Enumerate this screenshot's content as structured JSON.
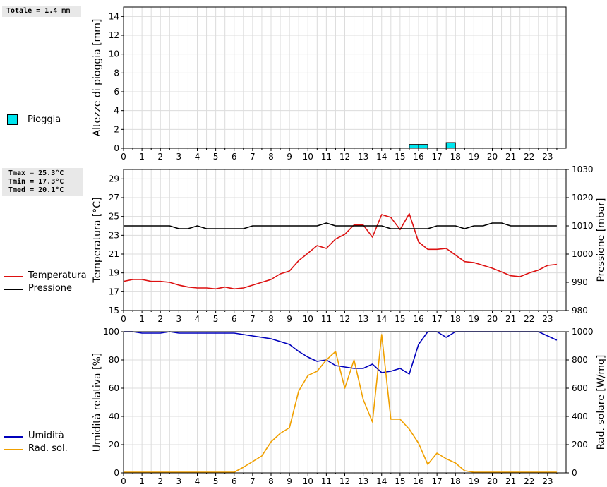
{
  "rain_panel": {
    "stats": "Totale = 1.4 mm",
    "legend": [
      {
        "label": "Pioggia",
        "color": "#00e5ee"
      }
    ]
  },
  "temp_panel": {
    "stats": [
      "Tmax = 25.3°C",
      "Tmin = 17.3°C",
      "Tmed = 20.1°C"
    ],
    "legend": [
      {
        "label": "Temperatura",
        "color": "#dd1111"
      },
      {
        "label": "Pressione",
        "color": "#000000"
      }
    ]
  },
  "hum_panel": {
    "legend": [
      {
        "label": "Umidità",
        "color": "#0000bb"
      },
      {
        "label": "Rad. sol.",
        "color": "#f0a000"
      }
    ]
  },
  "chart_data": [
    {
      "type": "bar",
      "ylabel": "Altezze di pioggia [mm]",
      "x_ticks": [
        "0",
        "1",
        "2",
        "3",
        "4",
        "5",
        "6",
        "7",
        "8",
        "9",
        "10",
        "11",
        "12",
        "13",
        "14",
        "15",
        "16",
        "17",
        "18",
        "19",
        "20",
        "21",
        "22",
        "23"
      ],
      "xlim": [
        0,
        24
      ],
      "ylim": [
        0,
        15
      ],
      "y_ticks": [
        0,
        2,
        4,
        6,
        8,
        10,
        12,
        14
      ],
      "grid": true,
      "series": [
        {
          "name": "Pioggia",
          "color": "#00e5ee",
          "bars": [
            {
              "x0": 15.5,
              "x1": 16.0,
              "value": 0.4
            },
            {
              "x0": 16.0,
              "x1": 16.5,
              "value": 0.4
            },
            {
              "x0": 17.5,
              "x1": 18.0,
              "value": 0.6
            }
          ]
        }
      ]
    },
    {
      "type": "line",
      "ylabel": "Temperatura [°C]",
      "y2label": "Pressione [mbar]",
      "x_ticks": [
        "0",
        "1",
        "2",
        "3",
        "4",
        "5",
        "6",
        "7",
        "8",
        "9",
        "10",
        "11",
        "12",
        "13",
        "14",
        "15",
        "16",
        "17",
        "18",
        "19",
        "20",
        "21",
        "22",
        "23"
      ],
      "xlim": [
        0,
        24
      ],
      "ylim": [
        15,
        30
      ],
      "y_ticks": [
        15,
        17,
        19,
        21,
        23,
        25,
        27,
        29
      ],
      "y2lim": [
        980,
        1030
      ],
      "y2_ticks": [
        980,
        990,
        1000,
        1010,
        1020,
        1030
      ],
      "grid": true,
      "series": [
        {
          "name": "Temperatura",
          "color": "#dd1111",
          "axis": "left",
          "x": [
            0,
            0.5,
            1,
            1.5,
            2,
            2.5,
            3,
            3.5,
            4,
            4.5,
            5,
            5.5,
            6,
            6.5,
            7,
            7.5,
            8,
            8.5,
            9,
            9.5,
            10,
            10.5,
            11,
            11.5,
            12,
            12.5,
            13,
            13.5,
            14,
            14.5,
            15,
            15.5,
            16,
            16.5,
            17,
            17.5,
            18,
            18.5,
            19,
            19.5,
            20,
            20.5,
            21,
            21.5,
            22,
            22.5,
            23,
            23.5
          ],
          "y": [
            18.1,
            18.3,
            18.3,
            18.1,
            18.1,
            18.0,
            17.7,
            17.5,
            17.4,
            17.4,
            17.3,
            17.5,
            17.3,
            17.4,
            17.7,
            18.0,
            18.3,
            18.9,
            19.2,
            20.3,
            21.1,
            21.9,
            21.6,
            22.6,
            23.1,
            24.1,
            24.1,
            22.8,
            25.2,
            24.9,
            23.6,
            25.3,
            22.3,
            21.5,
            21.5,
            21.6,
            20.9,
            20.2,
            20.1,
            19.8,
            19.5,
            19.1,
            18.7,
            18.6,
            19.0,
            19.3,
            19.8,
            19.9
          ]
        },
        {
          "name": "Pressione",
          "color": "#000000",
          "axis": "right",
          "x": [
            0,
            0.5,
            1,
            1.5,
            2,
            2.5,
            3,
            3.5,
            4,
            4.5,
            5,
            5.5,
            6,
            6.5,
            7,
            7.5,
            8,
            8.5,
            9,
            9.5,
            10,
            10.5,
            11,
            11.5,
            12,
            12.5,
            13,
            13.5,
            14,
            14.5,
            15,
            15.5,
            16,
            16.5,
            17,
            17.5,
            18,
            18.5,
            19,
            19.5,
            20,
            20.5,
            21,
            21.5,
            22,
            22.5,
            23,
            23.5
          ],
          "y": [
            1010,
            1010,
            1010,
            1010,
            1010,
            1010,
            1009,
            1009,
            1010,
            1009,
            1009,
            1009,
            1009,
            1009,
            1010,
            1010,
            1010,
            1010,
            1010,
            1010,
            1010,
            1010,
            1011,
            1010,
            1010,
            1010,
            1010,
            1010,
            1010,
            1009,
            1009,
            1009,
            1009,
            1009,
            1010,
            1010,
            1010,
            1009,
            1010,
            1010,
            1011,
            1011,
            1010,
            1010,
            1010,
            1010,
            1010,
            1010
          ]
        }
      ]
    },
    {
      "type": "line",
      "ylabel": "Umidità relativa [%]",
      "y2label": "Rad. solare [W/mq]",
      "x_ticks": [
        "0",
        "1",
        "2",
        "3",
        "4",
        "5",
        "6",
        "7",
        "8",
        "9",
        "10",
        "11",
        "12",
        "13",
        "14",
        "15",
        "16",
        "17",
        "18",
        "19",
        "20",
        "21",
        "22",
        "23"
      ],
      "xlim": [
        0,
        24
      ],
      "ylim": [
        0,
        100
      ],
      "y_ticks": [
        0,
        20,
        40,
        60,
        80,
        100
      ],
      "y2lim": [
        0,
        1000
      ],
      "y2_ticks": [
        0,
        200,
        400,
        600,
        800,
        1000
      ],
      "grid": true,
      "series": [
        {
          "name": "Umidità",
          "color": "#0000bb",
          "axis": "left",
          "x": [
            0,
            0.5,
            1,
            1.5,
            2,
            2.5,
            3,
            3.5,
            4,
            4.5,
            5,
            5.5,
            6,
            6.5,
            7,
            7.5,
            8,
            8.5,
            9,
            9.5,
            10,
            10.5,
            11,
            11.5,
            12,
            12.5,
            13,
            13.5,
            14,
            14.5,
            15,
            15.5,
            16,
            16.5,
            17,
            17.5,
            18,
            18.5,
            19,
            19.5,
            20,
            20.5,
            21,
            21.5,
            22,
            22.5,
            23,
            23.5
          ],
          "y": [
            100,
            100,
            99,
            99,
            99,
            100,
            99,
            99,
            99,
            99,
            99,
            99,
            99,
            98,
            97,
            96,
            95,
            93,
            91,
            86,
            82,
            79,
            80,
            76,
            75,
            74,
            74,
            77,
            71,
            72,
            74,
            70,
            91,
            100,
            100,
            96,
            100,
            100,
            100,
            100,
            100,
            100,
            100,
            100,
            100,
            100,
            97,
            94
          ]
        },
        {
          "name": "Rad. sol.",
          "color": "#f0a000",
          "axis": "right",
          "x": [
            0,
            0.5,
            1,
            1.5,
            2,
            2.5,
            3,
            3.5,
            4,
            4.5,
            5,
            5.5,
            6,
            6.5,
            7,
            7.5,
            8,
            8.5,
            9,
            9.5,
            10,
            10.5,
            11,
            11.5,
            12,
            12.5,
            13,
            13.5,
            14,
            14.5,
            15,
            15.5,
            16,
            16.5,
            17,
            17.5,
            18,
            18.5,
            19,
            19.5,
            20,
            20.5,
            21,
            21.5,
            22,
            22.5,
            23,
            23.5
          ],
          "y": [
            5,
            5,
            5,
            5,
            5,
            5,
            5,
            5,
            5,
            5,
            5,
            5,
            5,
            40,
            80,
            120,
            220,
            280,
            320,
            580,
            690,
            720,
            800,
            860,
            600,
            800,
            520,
            360,
            980,
            380,
            380,
            310,
            210,
            60,
            140,
            100,
            70,
            15,
            5,
            5,
            5,
            5,
            5,
            5,
            5,
            5,
            5,
            5
          ]
        }
      ]
    }
  ]
}
